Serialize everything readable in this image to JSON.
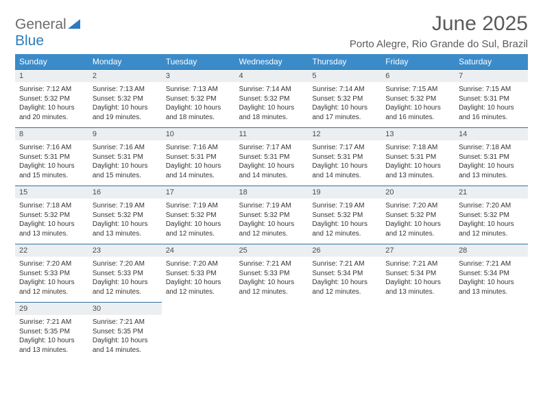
{
  "logo": {
    "word1": "General",
    "word2": "Blue"
  },
  "title": "June 2025",
  "subtitle": "Porto Alegre, Rio Grande do Sul, Brazil",
  "header_bg": "#3b8bc9",
  "daynum_bg": "#eceff1",
  "divider_color": "#2b6fa3",
  "dayNames": [
    "Sunday",
    "Monday",
    "Tuesday",
    "Wednesday",
    "Thursday",
    "Friday",
    "Saturday"
  ],
  "weeks": [
    [
      {
        "n": "1",
        "sr": "7:12 AM",
        "ss": "5:32 PM",
        "dl": "10 hours and 20 minutes."
      },
      {
        "n": "2",
        "sr": "7:13 AM",
        "ss": "5:32 PM",
        "dl": "10 hours and 19 minutes."
      },
      {
        "n": "3",
        "sr": "7:13 AM",
        "ss": "5:32 PM",
        "dl": "10 hours and 18 minutes."
      },
      {
        "n": "4",
        "sr": "7:14 AM",
        "ss": "5:32 PM",
        "dl": "10 hours and 18 minutes."
      },
      {
        "n": "5",
        "sr": "7:14 AM",
        "ss": "5:32 PM",
        "dl": "10 hours and 17 minutes."
      },
      {
        "n": "6",
        "sr": "7:15 AM",
        "ss": "5:32 PM",
        "dl": "10 hours and 16 minutes."
      },
      {
        "n": "7",
        "sr": "7:15 AM",
        "ss": "5:31 PM",
        "dl": "10 hours and 16 minutes."
      }
    ],
    [
      {
        "n": "8",
        "sr": "7:16 AM",
        "ss": "5:31 PM",
        "dl": "10 hours and 15 minutes."
      },
      {
        "n": "9",
        "sr": "7:16 AM",
        "ss": "5:31 PM",
        "dl": "10 hours and 15 minutes."
      },
      {
        "n": "10",
        "sr": "7:16 AM",
        "ss": "5:31 PM",
        "dl": "10 hours and 14 minutes."
      },
      {
        "n": "11",
        "sr": "7:17 AM",
        "ss": "5:31 PM",
        "dl": "10 hours and 14 minutes."
      },
      {
        "n": "12",
        "sr": "7:17 AM",
        "ss": "5:31 PM",
        "dl": "10 hours and 14 minutes."
      },
      {
        "n": "13",
        "sr": "7:18 AM",
        "ss": "5:31 PM",
        "dl": "10 hours and 13 minutes."
      },
      {
        "n": "14",
        "sr": "7:18 AM",
        "ss": "5:31 PM",
        "dl": "10 hours and 13 minutes."
      }
    ],
    [
      {
        "n": "15",
        "sr": "7:18 AM",
        "ss": "5:32 PM",
        "dl": "10 hours and 13 minutes."
      },
      {
        "n": "16",
        "sr": "7:19 AM",
        "ss": "5:32 PM",
        "dl": "10 hours and 13 minutes."
      },
      {
        "n": "17",
        "sr": "7:19 AM",
        "ss": "5:32 PM",
        "dl": "10 hours and 12 minutes."
      },
      {
        "n": "18",
        "sr": "7:19 AM",
        "ss": "5:32 PM",
        "dl": "10 hours and 12 minutes."
      },
      {
        "n": "19",
        "sr": "7:19 AM",
        "ss": "5:32 PM",
        "dl": "10 hours and 12 minutes."
      },
      {
        "n": "20",
        "sr": "7:20 AM",
        "ss": "5:32 PM",
        "dl": "10 hours and 12 minutes."
      },
      {
        "n": "21",
        "sr": "7:20 AM",
        "ss": "5:32 PM",
        "dl": "10 hours and 12 minutes."
      }
    ],
    [
      {
        "n": "22",
        "sr": "7:20 AM",
        "ss": "5:33 PM",
        "dl": "10 hours and 12 minutes."
      },
      {
        "n": "23",
        "sr": "7:20 AM",
        "ss": "5:33 PM",
        "dl": "10 hours and 12 minutes."
      },
      {
        "n": "24",
        "sr": "7:20 AM",
        "ss": "5:33 PM",
        "dl": "10 hours and 12 minutes."
      },
      {
        "n": "25",
        "sr": "7:21 AM",
        "ss": "5:33 PM",
        "dl": "10 hours and 12 minutes."
      },
      {
        "n": "26",
        "sr": "7:21 AM",
        "ss": "5:34 PM",
        "dl": "10 hours and 12 minutes."
      },
      {
        "n": "27",
        "sr": "7:21 AM",
        "ss": "5:34 PM",
        "dl": "10 hours and 13 minutes."
      },
      {
        "n": "28",
        "sr": "7:21 AM",
        "ss": "5:34 PM",
        "dl": "10 hours and 13 minutes."
      }
    ],
    [
      {
        "n": "29",
        "sr": "7:21 AM",
        "ss": "5:35 PM",
        "dl": "10 hours and 13 minutes."
      },
      {
        "n": "30",
        "sr": "7:21 AM",
        "ss": "5:35 PM",
        "dl": "10 hours and 14 minutes."
      },
      null,
      null,
      null,
      null,
      null
    ]
  ],
  "labels": {
    "sunrise": "Sunrise:",
    "sunset": "Sunset:",
    "daylight": "Daylight:"
  }
}
